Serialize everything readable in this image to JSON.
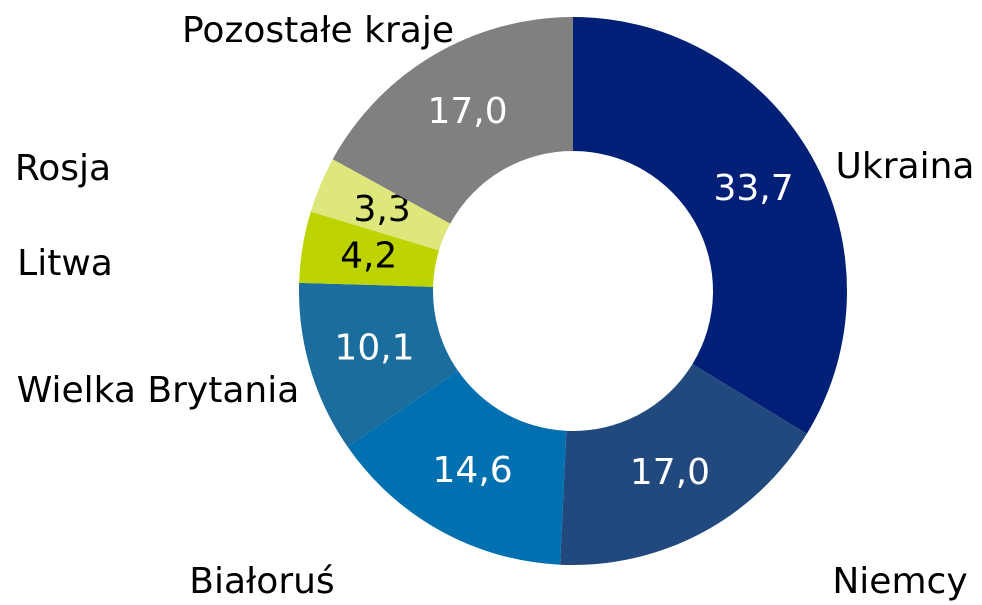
{
  "chart_data": {
    "type": "donut",
    "categories": [
      "Ukraina",
      "Niemcy",
      "Białoruś",
      "Wielka Brytania",
      "Litwa",
      "Rosja",
      "Pozostałe kraje"
    ],
    "values": [
      33.7,
      17.0,
      14.6,
      10.1,
      4.2,
      3.3,
      17.0
    ],
    "value_labels": [
      "33,7",
      "17,0",
      "14,6",
      "10,1",
      "4,2",
      "3,3",
      "17,0"
    ],
    "colors": [
      "#001f77",
      "#22497e",
      "#0070b0",
      "#1b6d9e",
      "#bdd400",
      "#dde77c",
      "#808080"
    ]
  }
}
